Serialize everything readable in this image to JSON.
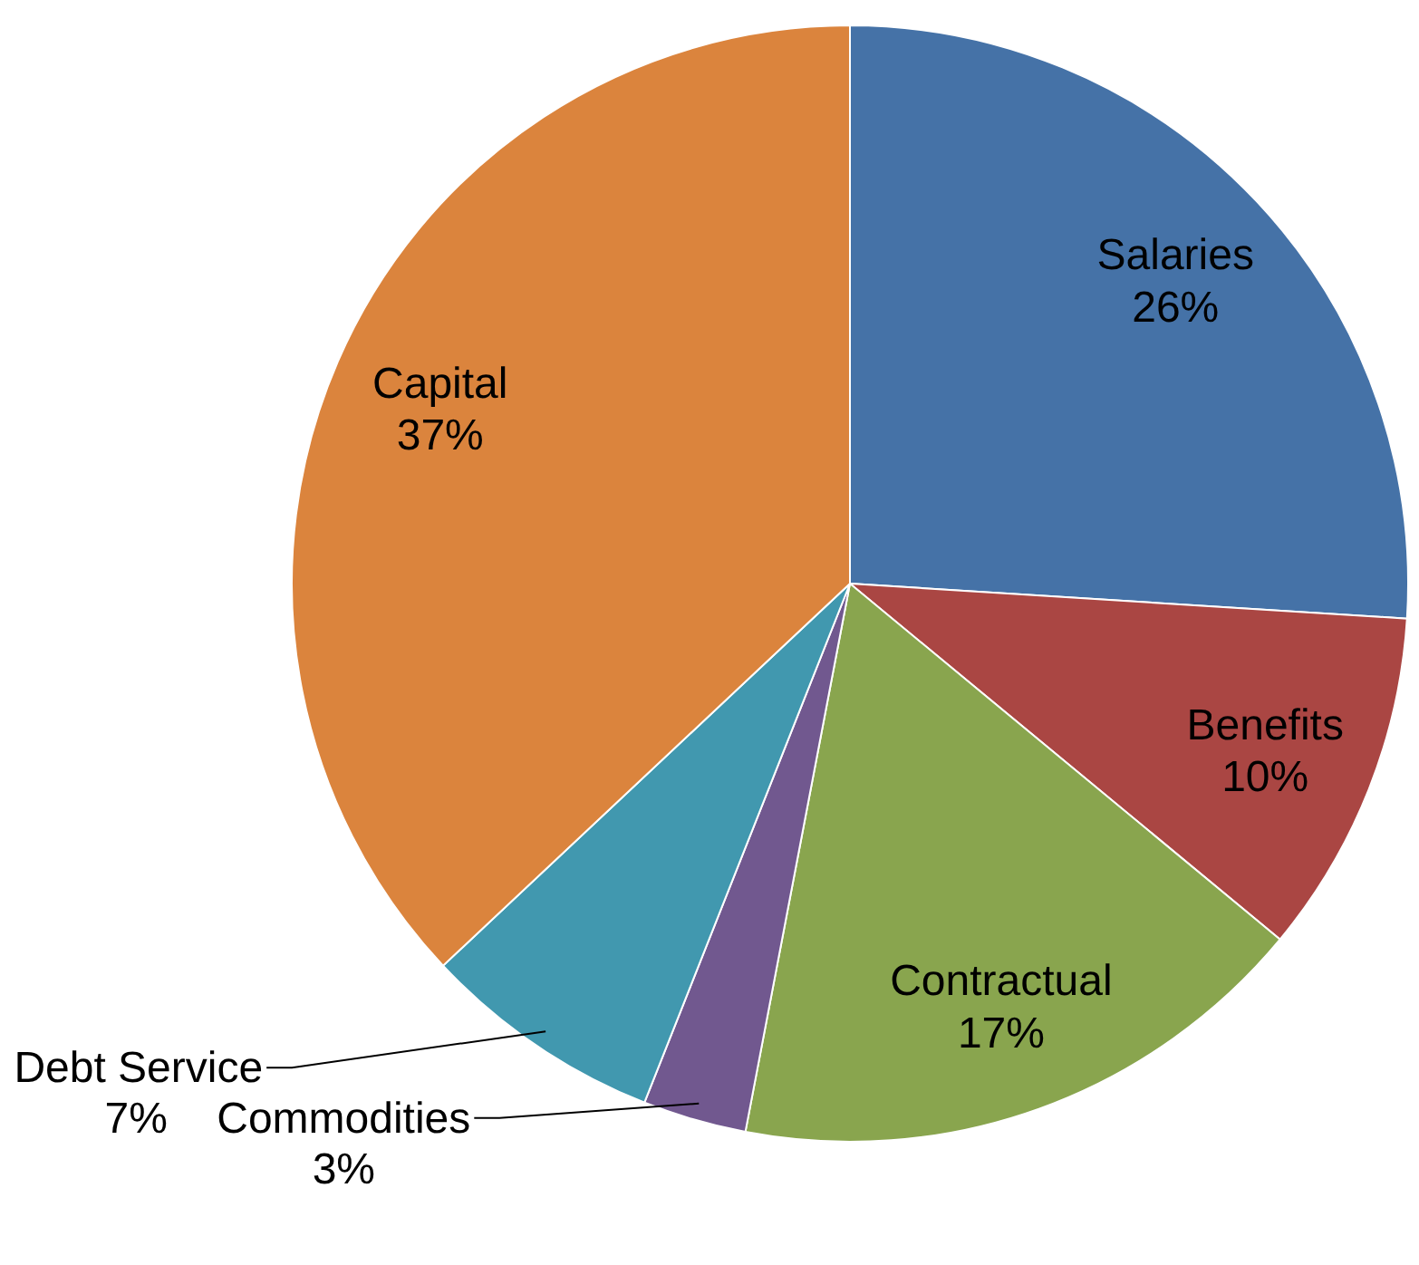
{
  "chart_data": {
    "type": "pie",
    "categories": [
      "Salaries",
      "Benefits",
      "Contractual",
      "Commodities",
      "Debt Service",
      "Capital"
    ],
    "values": [
      26,
      10,
      17,
      3,
      7,
      37
    ],
    "colors": [
      "#4572a7",
      "#aa4643",
      "#89a54e",
      "#71588f",
      "#4198af",
      "#db843d"
    ],
    "value_labels": [
      "26%",
      "10%",
      "17%",
      "3%",
      "7%",
      "37%"
    ]
  }
}
